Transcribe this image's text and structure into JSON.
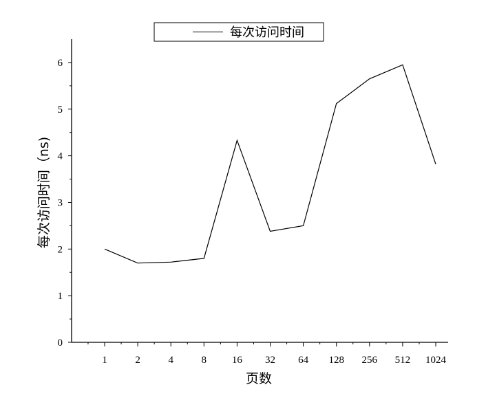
{
  "chart_data": {
    "type": "line",
    "categories": [
      "1",
      "2",
      "4",
      "8",
      "16",
      "32",
      "64",
      "128",
      "256",
      "512",
      "1024"
    ],
    "series": [
      {
        "name": "每次访问时间",
        "values": [
          2.0,
          1.7,
          1.72,
          1.8,
          4.33,
          2.38,
          2.5,
          5.12,
          5.65,
          5.95,
          3.82
        ]
      }
    ],
    "xlabel": "页数",
    "ylabel": "每次访问时间（ns)",
    "ylim": [
      0,
      6.5
    ],
    "yticks": [
      0,
      1,
      2,
      3,
      4,
      5,
      6
    ],
    "grid": false,
    "legend_position": "top-center",
    "line_color": "#000000"
  }
}
